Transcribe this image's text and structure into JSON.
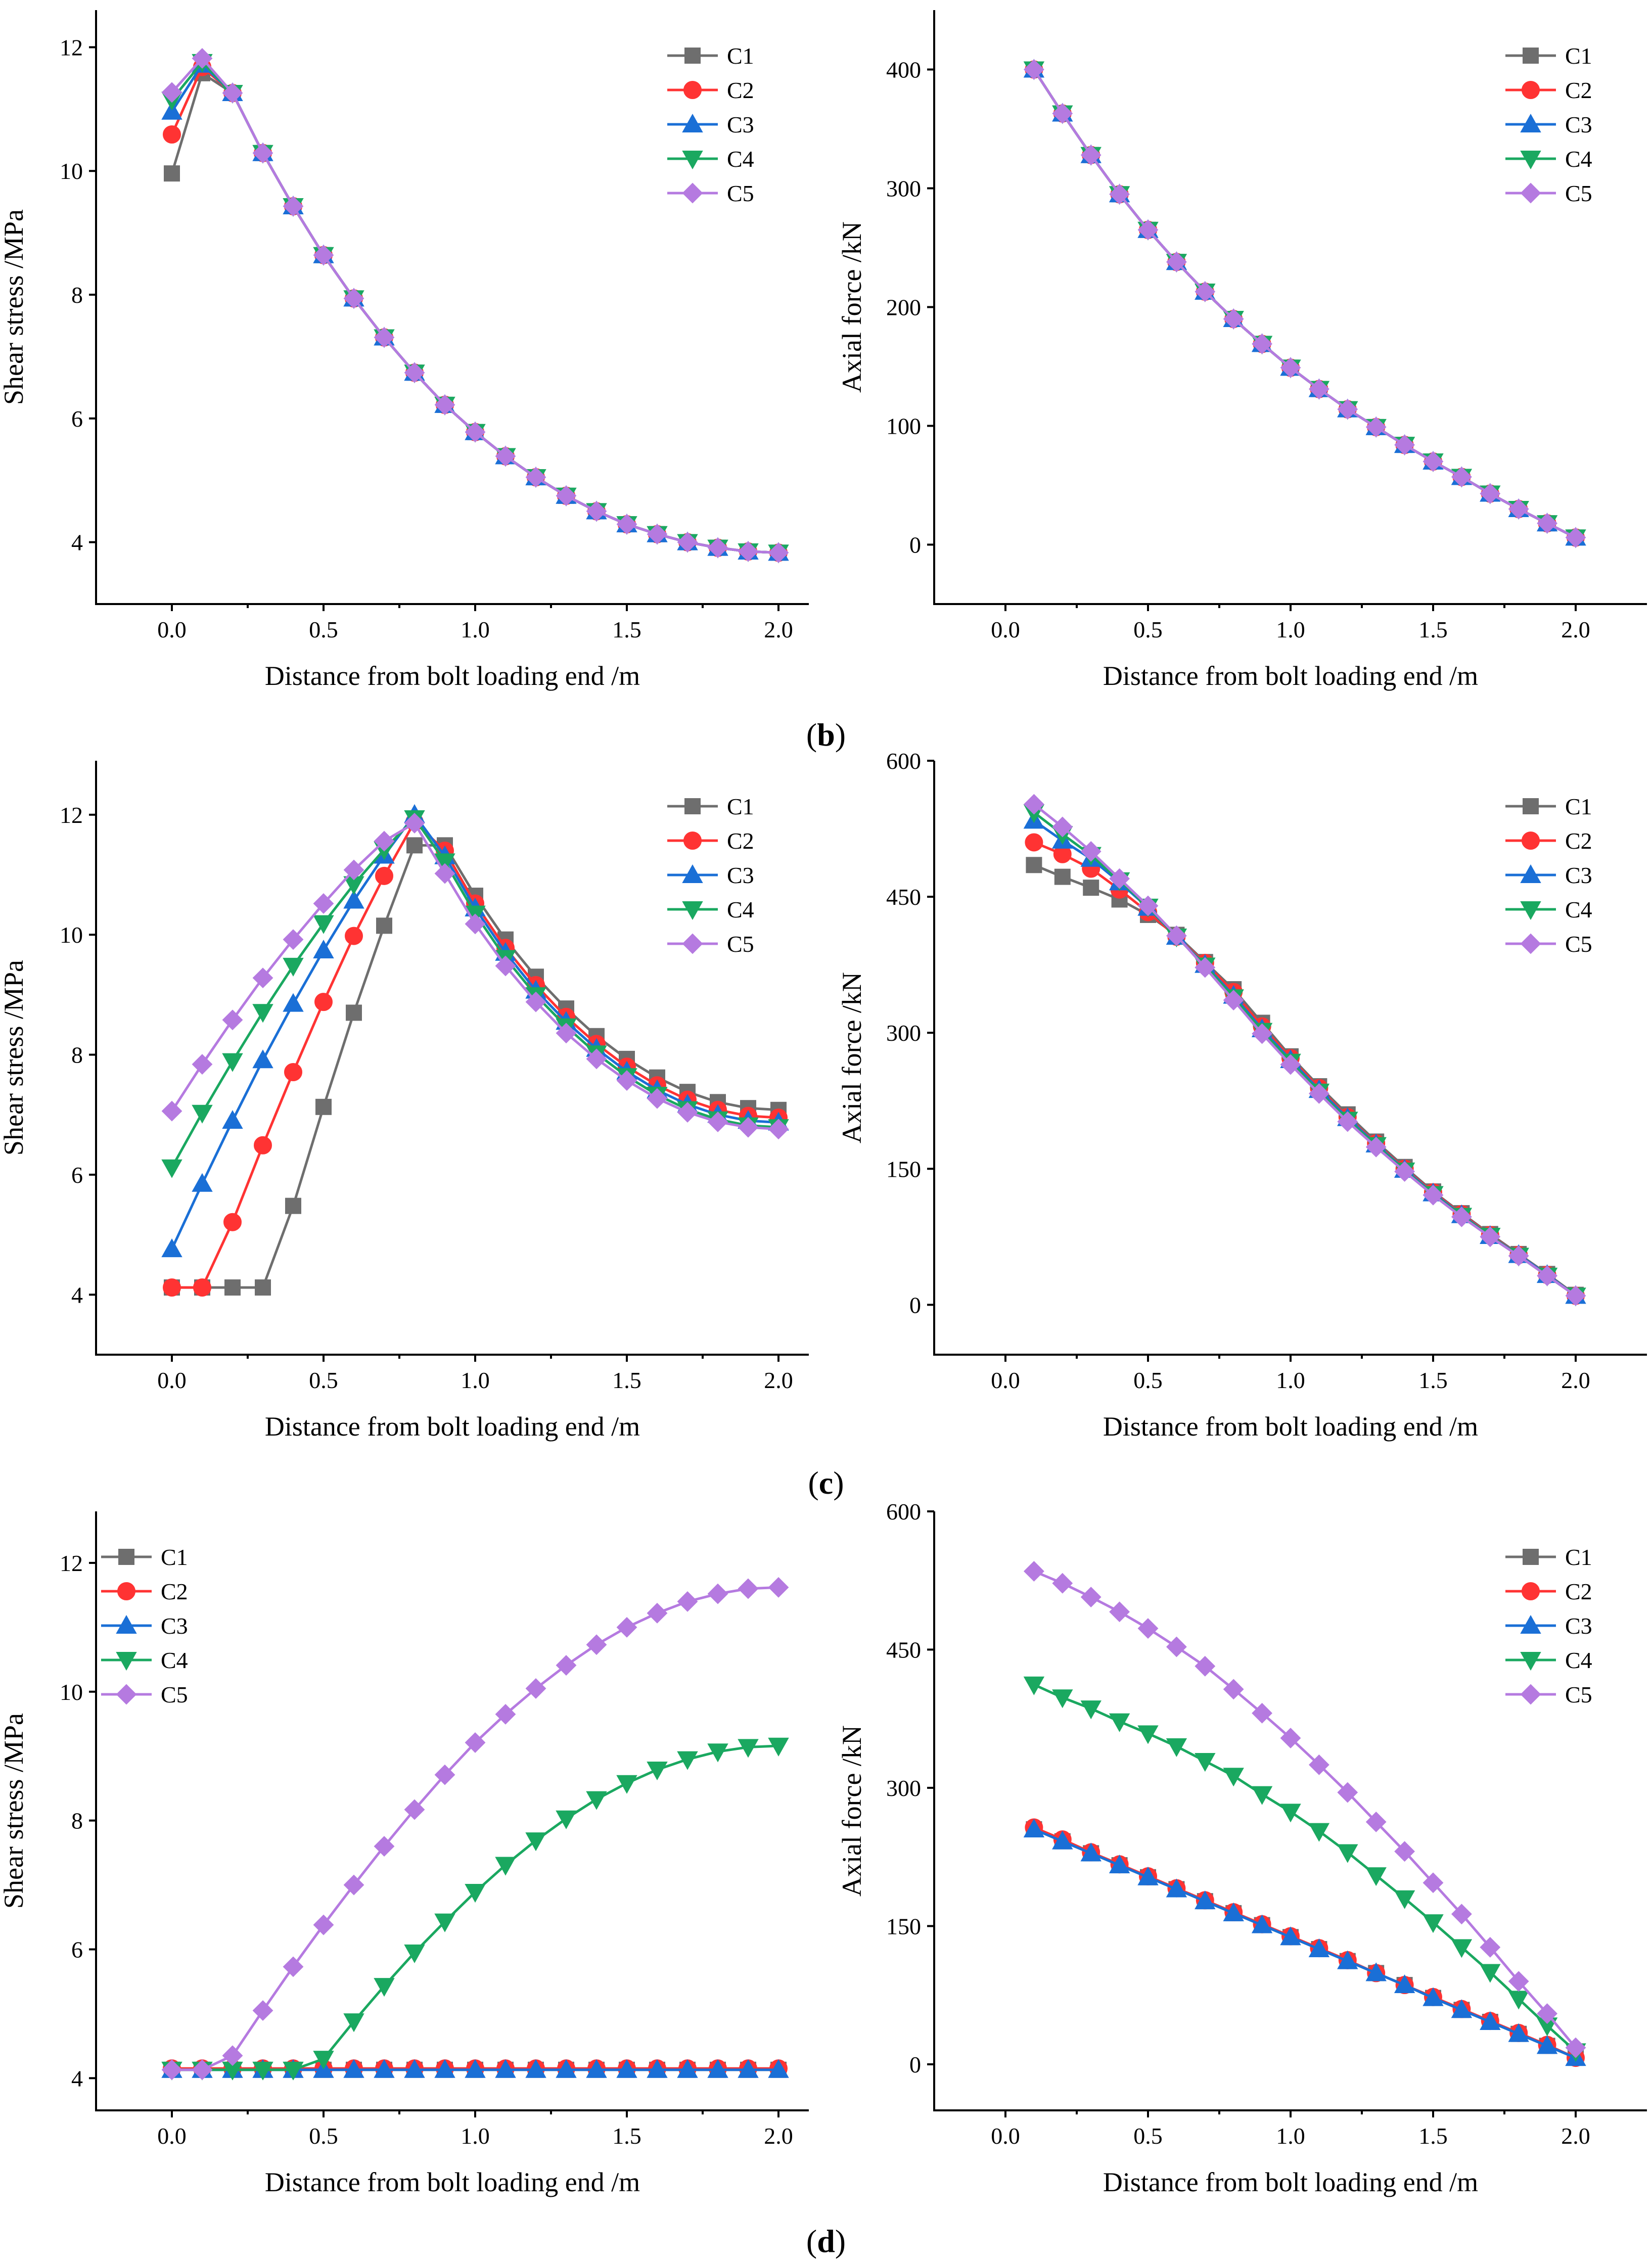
{
  "figure": {
    "panel_labels": [
      {
        "open": "(",
        "letter": "b",
        "close": ")"
      },
      {
        "open": "(",
        "letter": "c",
        "close": ")"
      },
      {
        "open": "(",
        "letter": "d",
        "close": ")"
      }
    ]
  },
  "series_styles": [
    {
      "name": "C1",
      "color": "#6e6e6e",
      "marker": "square"
    },
    {
      "name": "C2",
      "color": "#ff3333",
      "marker": "circle"
    },
    {
      "name": "C3",
      "color": "#1a6fd6",
      "marker": "triangle-up"
    },
    {
      "name": "C4",
      "color": "#1aa860",
      "marker": "triangle-down"
    },
    {
      "name": "C5",
      "color": "#b57ae0",
      "marker": "diamond"
    }
  ],
  "chart_data": [
    {
      "id": "b-left",
      "type": "line",
      "xlabel": "Distance from bolt loading end /m",
      "ylabel": "Shear stress /MPa",
      "xlim": [
        -0.25,
        2.1
      ],
      "ylim": [
        3.0,
        12.6
      ],
      "xticks": [
        "0.0",
        "0.5",
        "1.0",
        "1.5",
        "2.0"
      ],
      "yticks": [
        "4",
        "6",
        "8",
        "10",
        "12"
      ],
      "legend": "top-right",
      "x": [
        0.0,
        0.1,
        0.2,
        0.3,
        0.4,
        0.5,
        0.6,
        0.7,
        0.8,
        0.9,
        1.0,
        1.1,
        1.2,
        1.3,
        1.4,
        1.5,
        1.6,
        1.7,
        1.8,
        1.9,
        2.0
      ],
      "series": [
        {
          "name": "C1",
          "values": [
            9.96,
            11.58,
            11.26,
            10.29,
            9.43,
            8.64,
            7.94,
            7.31,
            6.74,
            6.22,
            5.78,
            5.39,
            5.05,
            4.75,
            4.5,
            4.29,
            4.13,
            4.0,
            3.91,
            3.85,
            3.83
          ]
        },
        {
          "name": "C2",
          "values": [
            10.59,
            11.68,
            11.26,
            10.29,
            9.43,
            8.64,
            7.94,
            7.31,
            6.74,
            6.22,
            5.78,
            5.39,
            5.05,
            4.75,
            4.5,
            4.29,
            4.13,
            4.0,
            3.91,
            3.85,
            3.83
          ]
        },
        {
          "name": "C3",
          "values": [
            10.96,
            11.72,
            11.26,
            10.29,
            9.43,
            8.64,
            7.94,
            7.31,
            6.74,
            6.22,
            5.78,
            5.39,
            5.05,
            4.75,
            4.5,
            4.29,
            4.13,
            4.0,
            3.91,
            3.85,
            3.83
          ]
        },
        {
          "name": "C4",
          "values": [
            11.15,
            11.76,
            11.26,
            10.29,
            9.43,
            8.64,
            7.94,
            7.31,
            6.74,
            6.22,
            5.78,
            5.39,
            5.05,
            4.75,
            4.5,
            4.29,
            4.13,
            4.0,
            3.91,
            3.85,
            3.83
          ]
        },
        {
          "name": "C5",
          "values": [
            11.27,
            11.82,
            11.26,
            10.29,
            9.43,
            8.64,
            7.94,
            7.31,
            6.74,
            6.22,
            5.78,
            5.39,
            5.05,
            4.75,
            4.5,
            4.29,
            4.13,
            4.0,
            3.91,
            3.85,
            3.83
          ]
        }
      ]
    },
    {
      "id": "b-right",
      "type": "line",
      "xlabel": "Distance from bolt loading end /m",
      "ylabel": "Axial force /kN",
      "xlim": [
        -0.25,
        2.25
      ],
      "ylim": [
        -50,
        450
      ],
      "xticks": [
        "0.0",
        "0.5",
        "1.0",
        "1.5",
        "2.0"
      ],
      "yticks": [
        "0",
        "100",
        "200",
        "300",
        "400"
      ],
      "legend": "top-right",
      "x": [
        0.1,
        0.2,
        0.3,
        0.4,
        0.5,
        0.6,
        0.7,
        0.8,
        0.9,
        1.0,
        1.1,
        1.2,
        1.3,
        1.4,
        1.5,
        1.6,
        1.7,
        1.8,
        1.9,
        2.0
      ],
      "series": [
        {
          "name": "C1",
          "values": [
            400,
            363,
            328,
            295,
            265,
            238,
            213,
            190,
            169,
            149,
            131,
            114,
            99,
            84,
            70,
            57,
            43,
            30,
            18,
            6
          ]
        },
        {
          "name": "C2",
          "values": [
            400,
            363,
            328,
            295,
            265,
            238,
            213,
            190,
            169,
            149,
            131,
            114,
            99,
            84,
            70,
            57,
            43,
            30,
            18,
            6
          ]
        },
        {
          "name": "C3",
          "values": [
            400,
            363,
            328,
            295,
            265,
            238,
            213,
            190,
            169,
            149,
            131,
            114,
            99,
            84,
            70,
            57,
            43,
            30,
            18,
            6
          ]
        },
        {
          "name": "C4",
          "values": [
            400,
            363,
            328,
            295,
            265,
            238,
            213,
            190,
            169,
            149,
            131,
            114,
            99,
            84,
            70,
            57,
            43,
            30,
            18,
            6
          ]
        },
        {
          "name": "C5",
          "values": [
            400,
            363,
            328,
            295,
            265,
            238,
            213,
            190,
            169,
            149,
            131,
            114,
            99,
            84,
            70,
            57,
            43,
            30,
            18,
            6
          ]
        }
      ]
    },
    {
      "id": "c-left",
      "type": "line",
      "xlabel": "Distance from bolt loading end /m",
      "ylabel": "Shear stress /MPa",
      "xlim": [
        -0.25,
        2.1
      ],
      "ylim": [
        3.0,
        12.9
      ],
      "xticks": [
        "0.0",
        "0.5",
        "1.0",
        "1.5",
        "2.0"
      ],
      "yticks": [
        "4",
        "6",
        "8",
        "10",
        "12"
      ],
      "legend": "top-right",
      "x": [
        0.0,
        0.1,
        0.2,
        0.3,
        0.4,
        0.5,
        0.6,
        0.7,
        0.8,
        0.9,
        1.0,
        1.1,
        1.2,
        1.3,
        1.4,
        1.5,
        1.6,
        1.7,
        1.8,
        1.9,
        2.0
      ],
      "series": [
        {
          "name": "C1",
          "values": [
            4.12,
            4.12,
            4.12,
            4.12,
            5.48,
            7.13,
            8.7,
            10.15,
            11.49,
            11.49,
            10.65,
            9.92,
            9.3,
            8.77,
            8.31,
            7.93,
            7.62,
            7.38,
            7.21,
            7.11,
            7.08
          ]
        },
        {
          "name": "C2",
          "values": [
            4.12,
            4.12,
            5.21,
            6.49,
            7.71,
            8.88,
            9.98,
            10.98,
            11.88,
            11.4,
            10.52,
            9.78,
            9.16,
            8.63,
            8.18,
            7.8,
            7.49,
            7.25,
            7.08,
            6.98,
            6.95
          ]
        },
        {
          "name": "C3",
          "values": [
            4.76,
            5.85,
            6.9,
            7.91,
            8.85,
            9.74,
            10.57,
            11.32,
            12.0,
            11.31,
            10.44,
            9.7,
            9.07,
            8.55,
            8.1,
            7.72,
            7.41,
            7.17,
            7.0,
            6.9,
            6.87
          ]
        },
        {
          "name": "C4",
          "values": [
            6.12,
            7.03,
            7.89,
            8.71,
            9.48,
            10.19,
            10.84,
            11.42,
            11.94,
            11.22,
            10.35,
            9.61,
            8.99,
            8.47,
            8.02,
            7.64,
            7.33,
            7.09,
            6.92,
            6.82,
            6.79
          ]
        },
        {
          "name": "C5",
          "values": [
            7.06,
            7.84,
            8.58,
            9.28,
            9.92,
            10.52,
            11.08,
            11.56,
            11.86,
            11.02,
            10.18,
            9.48,
            8.88,
            8.36,
            7.93,
            7.57,
            7.27,
            7.04,
            6.88,
            6.79,
            6.76
          ]
        }
      ]
    },
    {
      "id": "c-right",
      "type": "line",
      "xlabel": "Distance from bolt loading end /m",
      "ylabel": "Axial force /kN",
      "xlim": [
        -0.25,
        2.25
      ],
      "ylim": [
        -55,
        600
      ],
      "xticks": [
        "0.0",
        "0.5",
        "1.0",
        "1.5",
        "2.0"
      ],
      "yticks": [
        "0",
        "150",
        "300",
        "450",
        "600"
      ],
      "legend": "top-right",
      "x": [
        0.1,
        0.2,
        0.3,
        0.4,
        0.5,
        0.6,
        0.7,
        0.8,
        0.9,
        1.0,
        1.1,
        1.2,
        1.3,
        1.4,
        1.5,
        1.6,
        1.7,
        1.8,
        1.9,
        2.0
      ],
      "series": [
        {
          "name": "C1",
          "values": [
            485,
            472,
            460,
            447,
            430,
            408,
            378,
            348,
            311,
            274,
            241,
            210,
            180,
            152,
            125,
            101,
            78,
            56,
            34,
            11
          ]
        },
        {
          "name": "C2",
          "values": [
            510,
            497,
            481,
            458,
            433,
            406,
            377,
            345,
            307,
            272,
            239,
            207,
            178,
            150,
            124,
            100,
            77,
            55,
            33,
            10
          ]
        },
        {
          "name": "C3",
          "values": [
            534,
            512,
            492,
            466,
            438,
            406,
            375,
            341,
            304,
            270,
            237,
            206,
            177,
            149,
            123,
            99,
            76,
            55,
            33,
            10
          ]
        },
        {
          "name": "C4",
          "values": [
            543,
            519,
            496,
            468,
            439,
            406,
            374,
            339,
            302,
            268,
            235,
            204,
            176,
            148,
            122,
            98,
            76,
            54,
            32,
            10
          ]
        },
        {
          "name": "C5",
          "values": [
            552,
            527,
            500,
            470,
            440,
            407,
            372,
            336,
            299,
            265,
            233,
            202,
            174,
            147,
            121,
            97,
            75,
            54,
            32,
            10
          ]
        }
      ]
    },
    {
      "id": "d-left",
      "type": "line",
      "xlabel": "Distance from bolt loading end /m",
      "ylabel": "Shear stress /MPa",
      "xlim": [
        -0.25,
        2.1
      ],
      "ylim": [
        3.5,
        12.8
      ],
      "xticks": [
        "0.0",
        "0.5",
        "1.0",
        "1.5",
        "2.0"
      ],
      "yticks": [
        "4",
        "6",
        "8",
        "10",
        "12"
      ],
      "legend": "top-left",
      "x": [
        0.0,
        0.1,
        0.2,
        0.3,
        0.4,
        0.5,
        0.6,
        0.7,
        0.8,
        0.9,
        1.0,
        1.1,
        1.2,
        1.3,
        1.4,
        1.5,
        1.6,
        1.7,
        1.8,
        1.9,
        2.0
      ],
      "series": [
        {
          "name": "C1",
          "values": [
            4.13,
            4.13,
            4.13,
            4.13,
            4.13,
            4.13,
            4.13,
            4.13,
            4.13,
            4.13,
            4.13,
            4.13,
            4.13,
            4.13,
            4.13,
            4.13,
            4.13,
            4.13,
            4.13,
            4.13,
            4.13
          ]
        },
        {
          "name": "C2",
          "values": [
            4.15,
            4.15,
            4.15,
            4.15,
            4.15,
            4.15,
            4.15,
            4.15,
            4.15,
            4.15,
            4.15,
            4.15,
            4.15,
            4.15,
            4.15,
            4.15,
            4.15,
            4.15,
            4.15,
            4.15,
            4.15
          ]
        },
        {
          "name": "C3",
          "values": [
            4.13,
            4.13,
            4.13,
            4.13,
            4.13,
            4.13,
            4.13,
            4.13,
            4.13,
            4.13,
            4.13,
            4.13,
            4.13,
            4.13,
            4.13,
            4.13,
            4.13,
            4.13,
            4.13,
            4.13,
            4.13
          ]
        },
        {
          "name": "C4",
          "values": [
            4.13,
            4.13,
            4.13,
            4.13,
            4.13,
            4.3,
            4.88,
            5.43,
            5.95,
            6.43,
            6.89,
            7.31,
            7.69,
            8.03,
            8.33,
            8.58,
            8.79,
            8.95,
            9.07,
            9.14,
            9.16
          ]
        },
        {
          "name": "C5",
          "values": [
            4.13,
            4.13,
            4.35,
            5.05,
            5.73,
            6.38,
            7.0,
            7.6,
            8.17,
            8.71,
            9.21,
            9.65,
            10.05,
            10.41,
            10.73,
            11.0,
            11.22,
            11.4,
            11.52,
            11.6,
            11.62
          ]
        }
      ]
    },
    {
      "id": "d-right",
      "type": "line",
      "xlabel": "Distance from bolt loading end /m",
      "ylabel": "Axial force /kN",
      "xlim": [
        -0.25,
        2.25
      ],
      "ylim": [
        -50,
        600
      ],
      "xticks": [
        "0.0",
        "0.5",
        "1.0",
        "1.5",
        "2.0"
      ],
      "yticks": [
        "0",
        "150",
        "300",
        "450",
        "600"
      ],
      "legend": "top-right",
      "x": [
        0.1,
        0.2,
        0.3,
        0.4,
        0.5,
        0.6,
        0.7,
        0.8,
        0.9,
        1.0,
        1.1,
        1.2,
        1.3,
        1.4,
        1.5,
        1.6,
        1.7,
        1.8,
        1.9,
        2.0
      ],
      "series": [
        {
          "name": "C1",
          "values": [
            255,
            242,
            229,
            216,
            203,
            190,
            177,
            164,
            151,
            138,
            125,
            112,
            99,
            86,
            72,
            59,
            46,
            33,
            20,
            7
          ]
        },
        {
          "name": "C2",
          "values": [
            257,
            244,
            230,
            217,
            204,
            191,
            178,
            165,
            152,
            139,
            126,
            113,
            99,
            86,
            73,
            60,
            47,
            34,
            21,
            7
          ]
        },
        {
          "name": "C3",
          "values": [
            255,
            242,
            229,
            216,
            203,
            190,
            177,
            164,
            151,
            138,
            125,
            112,
            99,
            86,
            72,
            59,
            46,
            33,
            20,
            7
          ]
        },
        {
          "name": "C4",
          "values": [
            412,
            398,
            386,
            372,
            359,
            345,
            329,
            313,
            293,
            274,
            253,
            230,
            205,
            180,
            154,
            127,
            100,
            71,
            42,
            14
          ]
        },
        {
          "name": "C5",
          "values": [
            535,
            522,
            507,
            491,
            473,
            453,
            432,
            407,
            381,
            354,
            325,
            295,
            263,
            231,
            197,
            163,
            127,
            90,
            55,
            18
          ]
        }
      ]
    }
  ]
}
